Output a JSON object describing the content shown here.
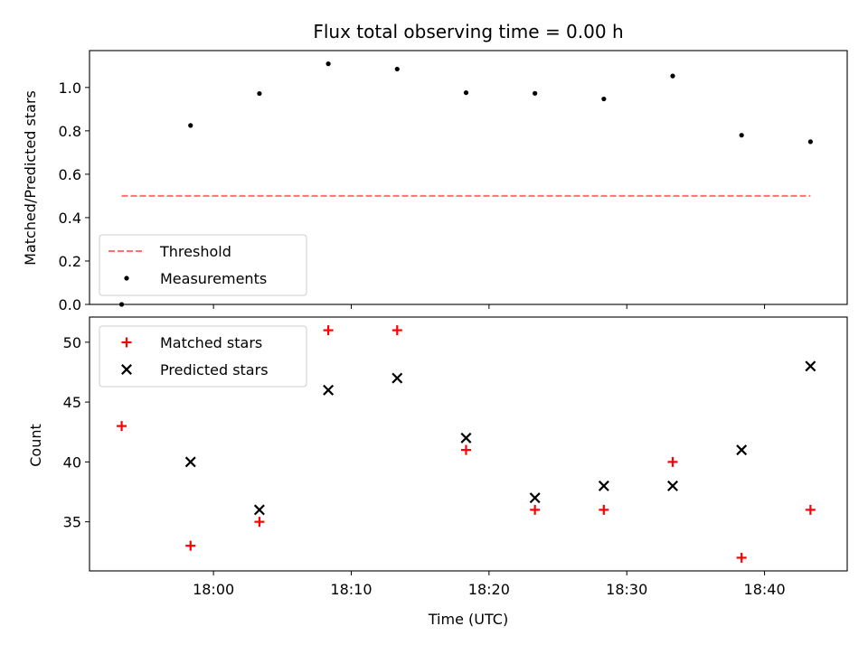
{
  "chart_data": {
    "title": "Flux total observing time = 0.00 h",
    "xlabel": "Time (UTC)",
    "x_unit": "minutes",
    "xlim": [
      "17:51",
      "18:46"
    ],
    "x_ticks": [
      "18:00",
      "18:10",
      "18:20",
      "18:30",
      "18:40"
    ],
    "x": [
      "17:53:20",
      "17:58:20",
      "18:03:20",
      "18:08:20",
      "18:13:20",
      "18:18:20",
      "18:23:20",
      "18:28:20",
      "18:33:20",
      "18:38:20",
      "18:43:20"
    ],
    "panels": [
      {
        "type": "scatter",
        "ylabel": "Matched/Predicted stars",
        "ylim": [
          0,
          1.17
        ],
        "y_ticks": [
          "0.0",
          "0.2",
          "0.4",
          "0.6",
          "0.8",
          "1.0"
        ],
        "grid": false,
        "legend_position": "lower-left",
        "series": [
          {
            "name": "Threshold",
            "style": "dashed-line",
            "color": "#ff7070",
            "x_range": [
              "17:53:20",
              "18:43:20"
            ],
            "y": 0.5
          },
          {
            "name": "Measurements",
            "style": "dot",
            "color": "#000000",
            "values": [
              0.0,
              0.825,
              0.972,
              1.109,
              1.085,
              0.976,
              0.973,
              0.947,
              1.053,
              0.78,
              0.75
            ]
          }
        ]
      },
      {
        "type": "scatter",
        "ylabel": "Count",
        "ylim": [
          30.9,
          52.1
        ],
        "y_ticks": [
          "35",
          "40",
          "45",
          "50"
        ],
        "grid": false,
        "legend_position": "upper-left",
        "series": [
          {
            "name": "Matched stars",
            "style": "plus",
            "color": "#ff0000",
            "values": [
              43,
              33,
              35,
              51,
              51,
              41,
              36,
              36,
              40,
              32,
              36
            ]
          },
          {
            "name": "Predicted stars",
            "style": "cross",
            "color": "#000000",
            "values": [
              null,
              40,
              36,
              46,
              47,
              42,
              37,
              38,
              38,
              41,
              48
            ]
          }
        ]
      }
    ]
  }
}
